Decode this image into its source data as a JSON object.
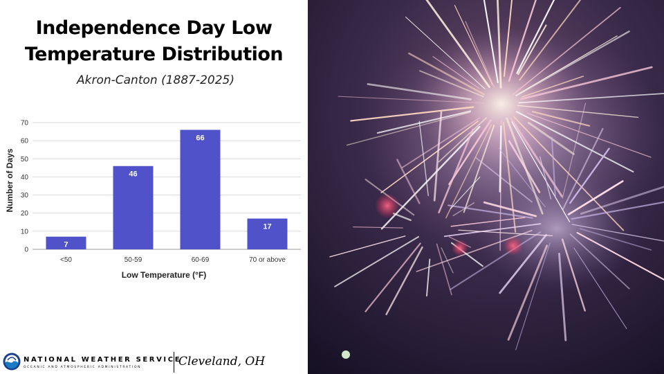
{
  "slide": {
    "title_line1": "Independence Day Low",
    "title_line2": "Temperature Distribution",
    "subtitle": "Akron-Canton (1887-2025)"
  },
  "footer": {
    "agency_name": "NATIONAL WEATHER SERVICE",
    "parent_agency": "OCEANIC AND ATMOSPHERIC ADMINISTRATION",
    "office": "Cleveland, OH"
  },
  "photo": {
    "icon": "fireworks-image"
  },
  "colors": {
    "bar": "#4f52c9",
    "grid": "#d9d9d9",
    "axis": "#9e9e9e"
  },
  "chart_data": {
    "type": "bar",
    "categories": [
      "<50",
      "50-59",
      "60-69",
      "70 or above"
    ],
    "values": [
      7,
      46,
      66,
      17
    ],
    "xlabel": "Low Temperature (°F)",
    "ylabel": "Number of Days",
    "ylim": [
      0,
      70
    ],
    "yticks": [
      0,
      10,
      20,
      30,
      40,
      50,
      60,
      70
    ],
    "grid": true,
    "data_labels": true
  }
}
